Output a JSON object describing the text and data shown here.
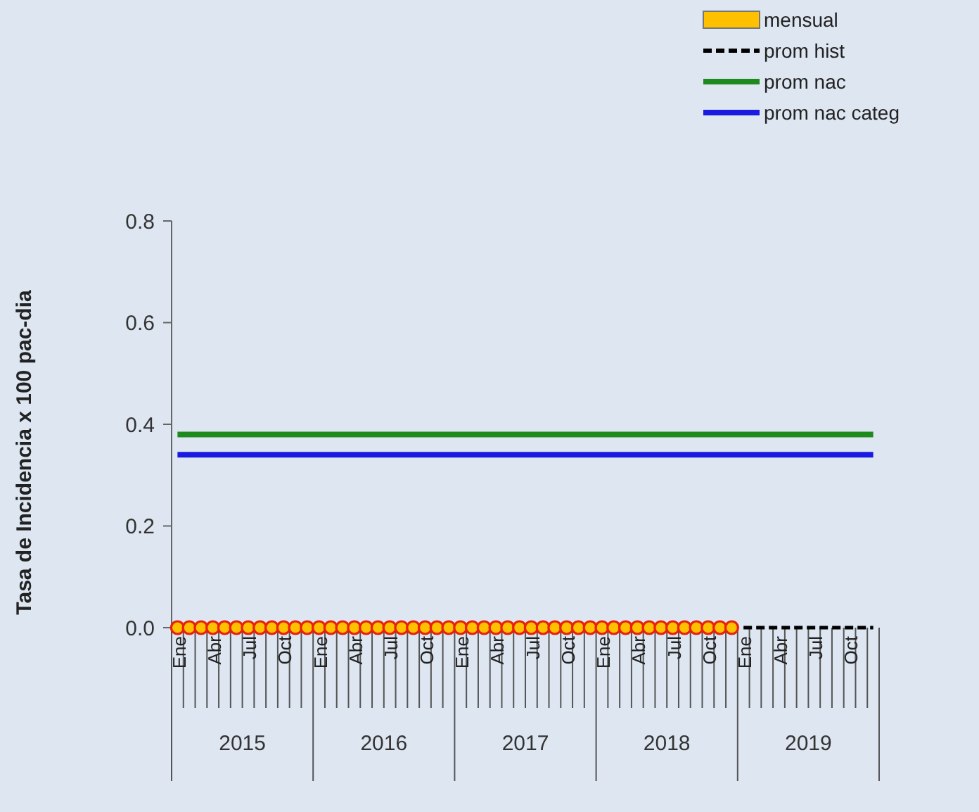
{
  "chart_data": {
    "type": "line",
    "ylabel": "Tasa de Incidencia x 100 pac-dia",
    "categories": [
      "Ene",
      null,
      null,
      "Abr",
      null,
      null,
      "Jul",
      null,
      null,
      "Oct",
      null,
      null,
      "Ene",
      null,
      null,
      "Abr",
      null,
      null,
      "Jul",
      null,
      null,
      "Oct",
      null,
      null,
      "Ene",
      null,
      null,
      "Abr",
      null,
      null,
      "Jul",
      null,
      null,
      "Oct",
      null,
      null,
      "Ene",
      null,
      null,
      "Abr",
      null,
      null,
      "Jul",
      null,
      null,
      "Oct",
      null,
      null,
      "Ene",
      null,
      null,
      "Abr",
      null,
      null,
      "Jul",
      null,
      null,
      "Oct",
      null,
      null
    ],
    "annotations": [
      "2015",
      "2016",
      "2017",
      "2018",
      "2019"
    ],
    "ylim": [
      0,
      0.8
    ],
    "yticks": [
      {
        "value": 0,
        "label": "0.0"
      },
      {
        "value": 0.2,
        "label": "0.2"
      },
      {
        "value": 0.4,
        "label": "0.4"
      },
      {
        "value": 0.6,
        "label": "0.6"
      },
      {
        "value": 0.8,
        "label": "0.8"
      }
    ],
    "grid": false,
    "legend": "top right",
    "series": [
      {
        "name": "mensual",
        "type": "scatter",
        "marker": "circle",
        "color": "#ffc000",
        "values": [
          0,
          0,
          0,
          0,
          0,
          0,
          0,
          0,
          0,
          0,
          0,
          0,
          0,
          0,
          0,
          0,
          0,
          0,
          0,
          0,
          0,
          0,
          0,
          0,
          0,
          0,
          0,
          0,
          0,
          0,
          0,
          0,
          0,
          0,
          0,
          0,
          0,
          0,
          0,
          0,
          0,
          0,
          0,
          0,
          0,
          0,
          0,
          0,
          null,
          null,
          null,
          null,
          null,
          null,
          null,
          null,
          null,
          null,
          null,
          null
        ]
      },
      {
        "name": "prom hist",
        "line_style": "dashed",
        "color": "#000000",
        "values": [
          null,
          null,
          null,
          null,
          null,
          null,
          null,
          null,
          null,
          null,
          null,
          null,
          null,
          null,
          null,
          null,
          null,
          null,
          null,
          null,
          null,
          null,
          null,
          null,
          null,
          null,
          null,
          null,
          null,
          null,
          null,
          null,
          null,
          null,
          null,
          null,
          null,
          null,
          null,
          null,
          null,
          null,
          null,
          null,
          null,
          null,
          null,
          null,
          0,
          0,
          0,
          0,
          0,
          0,
          0,
          0,
          0,
          0,
          0,
          0
        ]
      },
      {
        "name": "prom nac",
        "line_style": "solid",
        "color": "#1e8a1e",
        "values": [
          0.38,
          0.38,
          0.38,
          0.38,
          0.38,
          0.38,
          0.38,
          0.38,
          0.38,
          0.38,
          0.38,
          0.38,
          0.38,
          0.38,
          0.38,
          0.38,
          0.38,
          0.38,
          0.38,
          0.38,
          0.38,
          0.38,
          0.38,
          0.38,
          0.38,
          0.38,
          0.38,
          0.38,
          0.38,
          0.38,
          0.38,
          0.38,
          0.38,
          0.38,
          0.38,
          0.38,
          0.38,
          0.38,
          0.38,
          0.38,
          0.38,
          0.38,
          0.38,
          0.38,
          0.38,
          0.38,
          0.38,
          0.38,
          0.38,
          0.38,
          0.38,
          0.38,
          0.38,
          0.38,
          0.38,
          0.38,
          0.38,
          0.38,
          0.38,
          0.38
        ]
      },
      {
        "name": "prom nac categ",
        "line_style": "solid",
        "color": "#1a1ae0",
        "values": [
          0.34,
          0.34,
          0.34,
          0.34,
          0.34,
          0.34,
          0.34,
          0.34,
          0.34,
          0.34,
          0.34,
          0.34,
          0.34,
          0.34,
          0.34,
          0.34,
          0.34,
          0.34,
          0.34,
          0.34,
          0.34,
          0.34,
          0.34,
          0.34,
          0.34,
          0.34,
          0.34,
          0.34,
          0.34,
          0.34,
          0.34,
          0.34,
          0.34,
          0.34,
          0.34,
          0.34,
          0.34,
          0.34,
          0.34,
          0.34,
          0.34,
          0.34,
          0.34,
          0.34,
          0.34,
          0.34,
          0.34,
          0.34,
          0.34,
          0.34,
          0.34,
          0.34,
          0.34,
          0.34,
          0.34,
          0.34,
          0.34,
          0.34,
          0.34,
          0.34
        ]
      }
    ]
  }
}
